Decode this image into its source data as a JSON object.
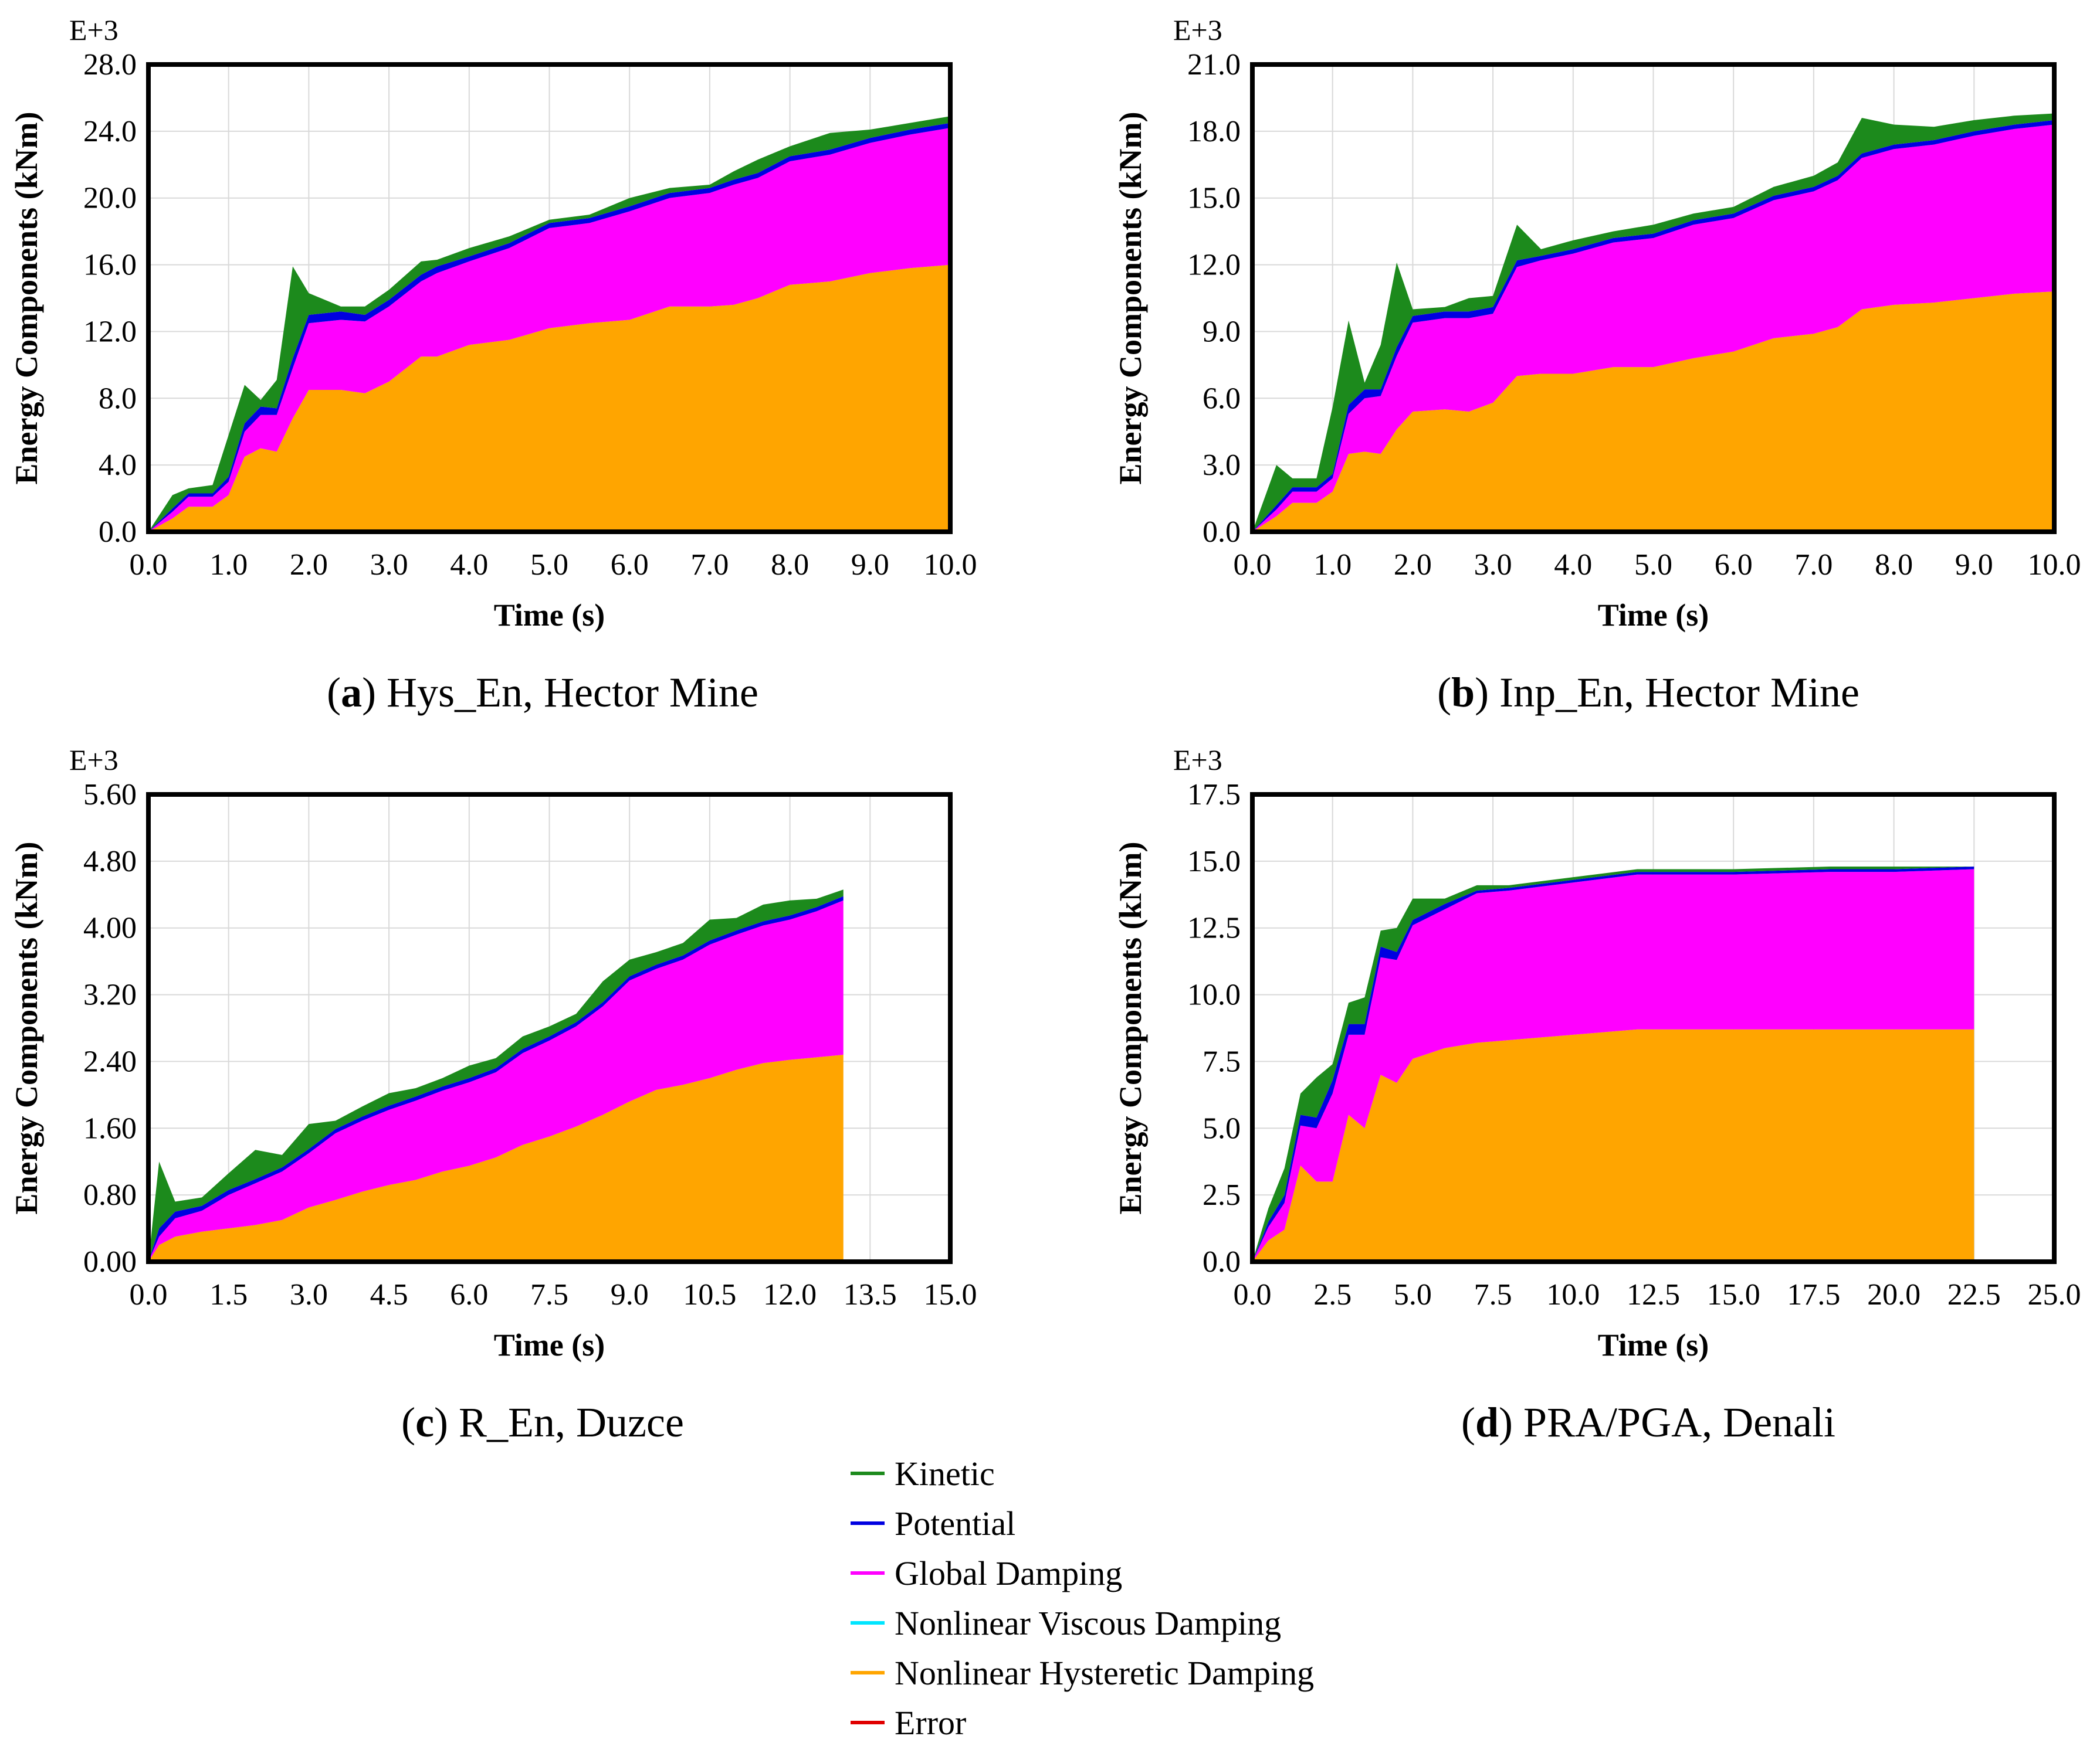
{
  "colors": {
    "kinetic": "#1c8a1c",
    "potential": "#0000e0",
    "global_damping": "#ff00ff",
    "nonlinear_viscous_damping": "#00e5ff",
    "nonlinear_hysteretic_damping": "#ffa500",
    "error": "#e00000",
    "grid": "#d9d9d9"
  },
  "legend": {
    "items": [
      {
        "key": "kinetic",
        "label": "Kinetic",
        "color": "#1c8a1c"
      },
      {
        "key": "potential",
        "label": "Potential",
        "color": "#0000e0"
      },
      {
        "key": "global_damping",
        "label": "Global Damping",
        "color": "#ff00ff"
      },
      {
        "key": "nonlinear_viscous_damping",
        "label": "Nonlinear Viscous Damping",
        "color": "#00e5ff"
      },
      {
        "key": "nonlinear_hysteretic_damping",
        "label": "Nonlinear Hysteretic Damping",
        "color": "#ffa500"
      },
      {
        "key": "error",
        "label": "Error",
        "color": "#e00000"
      }
    ]
  },
  "chart_data": [
    {
      "type": "area",
      "stacked": true,
      "caption_letter": "a",
      "caption_text": "Hys_En, Hector Mine",
      "xlabel": "Time (s)",
      "ylabel": "Energy Components (kNm)",
      "y_exponent": "E+3",
      "xlim": [
        0,
        10
      ],
      "ylim": [
        0,
        28
      ],
      "xticks": [
        "0.0",
        "1.0",
        "2.0",
        "3.0",
        "4.0",
        "5.0",
        "6.0",
        "7.0",
        "8.0",
        "9.0",
        "10.0"
      ],
      "yticks": [
        "0.0",
        "4.0",
        "8.0",
        "12.0",
        "16.0",
        "20.0",
        "24.0",
        "28.0"
      ],
      "x_end": 10,
      "x": [
        0,
        0.3,
        0.5,
        0.8,
        1.0,
        1.2,
        1.4,
        1.6,
        1.8,
        2.0,
        2.4,
        2.7,
        3.0,
        3.4,
        3.6,
        4.0,
        4.5,
        5.0,
        5.5,
        6.0,
        6.5,
        7.0,
        7.3,
        7.6,
        8.0,
        8.5,
        9.0,
        9.5,
        10.0
      ],
      "series": [
        {
          "name": "Nonlinear Hysteretic Damping",
          "values": [
            0,
            0.8,
            1.5,
            1.5,
            2.2,
            4.5,
            5.0,
            4.8,
            6.8,
            8.5,
            8.5,
            8.3,
            9.0,
            10.5,
            10.5,
            11.2,
            11.5,
            12.2,
            12.5,
            12.7,
            13.5,
            13.5,
            13.6,
            14.0,
            14.8,
            15.0,
            15.5,
            15.8,
            16.0
          ]
        },
        {
          "name": "Global Damping",
          "values": [
            0,
            0.4,
            0.6,
            0.6,
            0.8,
            1.5,
            2.0,
            2.2,
            3.0,
            4.0,
            4.2,
            4.3,
            4.5,
            4.5,
            5.0,
            5.0,
            5.5,
            6.0,
            6.0,
            6.5,
            6.5,
            6.8,
            7.2,
            7.2,
            7.4,
            7.6,
            7.8,
            8.0,
            8.2
          ]
        },
        {
          "name": "Potential",
          "values": [
            0,
            0.2,
            0.2,
            0.2,
            0.3,
            0.5,
            0.5,
            0.4,
            0.6,
            0.5,
            0.5,
            0.4,
            0.4,
            0.4,
            0.4,
            0.3,
            0.3,
            0.3,
            0.3,
            0.3,
            0.3,
            0.3,
            0.3,
            0.3,
            0.3,
            0.3,
            0.3,
            0.3,
            0.3
          ]
        },
        {
          "name": "Kinetic",
          "values": [
            0,
            0.8,
            0.3,
            0.5,
            2.5,
            2.3,
            0.4,
            1.7,
            5.5,
            1.3,
            0.3,
            0.5,
            0.6,
            0.8,
            0.4,
            0.5,
            0.4,
            0.2,
            0.2,
            0.5,
            0.3,
            0.2,
            0.5,
            0.8,
            0.6,
            1.0,
            0.5,
            0.4,
            0.4
          ]
        }
      ]
    },
    {
      "type": "area",
      "stacked": true,
      "caption_letter": "b",
      "caption_text": "Inp_En, Hector Mine",
      "xlabel": "Time (s)",
      "ylabel": "Energy Components (kNm)",
      "y_exponent": "E+3",
      "xlim": [
        0,
        10
      ],
      "ylim": [
        0,
        21
      ],
      "xticks": [
        "0.0",
        "1.0",
        "2.0",
        "3.0",
        "4.0",
        "5.0",
        "6.0",
        "7.0",
        "8.0",
        "9.0",
        "10.0"
      ],
      "yticks": [
        "0.0",
        "3.0",
        "6.0",
        "9.0",
        "12.0",
        "15.0",
        "18.0",
        "21.0"
      ],
      "x_end": 10,
      "x": [
        0,
        0.3,
        0.5,
        0.8,
        1.0,
        1.2,
        1.4,
        1.6,
        1.8,
        2.0,
        2.4,
        2.7,
        3.0,
        3.3,
        3.6,
        4.0,
        4.5,
        5.0,
        5.5,
        6.0,
        6.5,
        7.0,
        7.3,
        7.6,
        8.0,
        8.5,
        9.0,
        9.5,
        10.0
      ],
      "series": [
        {
          "name": "Nonlinear Hysteretic Damping",
          "values": [
            0,
            0.7,
            1.3,
            1.3,
            1.8,
            3.5,
            3.6,
            3.5,
            4.6,
            5.4,
            5.5,
            5.4,
            5.8,
            7.0,
            7.1,
            7.1,
            7.4,
            7.4,
            7.8,
            8.1,
            8.7,
            8.9,
            9.2,
            10.0,
            10.2,
            10.3,
            10.5,
            10.7,
            10.8
          ]
        },
        {
          "name": "Global Damping",
          "values": [
            0,
            0.3,
            0.5,
            0.5,
            0.6,
            1.8,
            2.4,
            2.6,
            3.3,
            4.0,
            4.1,
            4.2,
            4.0,
            4.9,
            5.1,
            5.4,
            5.6,
            5.8,
            6.0,
            6.0,
            6.2,
            6.4,
            6.6,
            6.8,
            7.0,
            7.1,
            7.3,
            7.4,
            7.5
          ]
        },
        {
          "name": "Potential",
          "values": [
            0,
            0.2,
            0.2,
            0.2,
            0.2,
            0.4,
            0.4,
            0.3,
            0.4,
            0.3,
            0.3,
            0.3,
            0.3,
            0.3,
            0.2,
            0.2,
            0.2,
            0.2,
            0.2,
            0.2,
            0.2,
            0.2,
            0.2,
            0.2,
            0.2,
            0.2,
            0.2,
            0.2,
            0.2
          ]
        },
        {
          "name": "Kinetic",
          "values": [
            0,
            1.8,
            0.4,
            0.4,
            3.0,
            3.8,
            0.3,
            2.0,
            3.8,
            0.3,
            0.2,
            0.6,
            0.5,
            1.6,
            0.3,
            0.4,
            0.3,
            0.4,
            0.3,
            0.3,
            0.4,
            0.5,
            0.6,
            1.6,
            0.9,
            0.6,
            0.5,
            0.4,
            0.3
          ]
        }
      ]
    },
    {
      "type": "area",
      "stacked": true,
      "caption_letter": "c",
      "caption_text": "R_En, Duzce",
      "xlabel": "Time (s)",
      "ylabel": "Energy Components (kNm)",
      "y_exponent": "E+3",
      "xlim": [
        0,
        15
      ],
      "ylim": [
        0,
        5.6
      ],
      "xticks": [
        "0.0",
        "1.5",
        "3.0",
        "4.5",
        "6.0",
        "7.5",
        "9.0",
        "10.5",
        "12.0",
        "13.5",
        "15.0"
      ],
      "yticks": [
        "0.00",
        "0.80",
        "1.60",
        "2.40",
        "3.20",
        "4.00",
        "4.80",
        "5.60"
      ],
      "x_end": 13.0,
      "x": [
        0,
        0.2,
        0.5,
        1.0,
        1.5,
        2.0,
        2.5,
        3.0,
        3.5,
        4.0,
        4.5,
        5.0,
        5.5,
        6.0,
        6.5,
        7.0,
        7.5,
        8.0,
        8.5,
        9.0,
        9.5,
        10.0,
        10.5,
        11.0,
        11.5,
        12.0,
        12.5,
        13.0
      ],
      "series": [
        {
          "name": "Nonlinear Hysteretic Damping",
          "values": [
            0,
            0.2,
            0.3,
            0.36,
            0.4,
            0.44,
            0.5,
            0.65,
            0.74,
            0.84,
            0.92,
            0.98,
            1.08,
            1.15,
            1.25,
            1.4,
            1.5,
            1.62,
            1.76,
            1.92,
            2.06,
            2.12,
            2.2,
            2.3,
            2.38,
            2.42,
            2.45,
            2.48
          ]
        },
        {
          "name": "Global Damping",
          "values": [
            0,
            0.1,
            0.22,
            0.25,
            0.4,
            0.5,
            0.58,
            0.65,
            0.8,
            0.85,
            0.9,
            0.95,
            0.97,
            1.0,
            1.02,
            1.1,
            1.15,
            1.2,
            1.3,
            1.45,
            1.45,
            1.5,
            1.6,
            1.62,
            1.65,
            1.68,
            1.75,
            1.85
          ]
        },
        {
          "name": "Potential",
          "values": [
            0,
            0.1,
            0.08,
            0.06,
            0.06,
            0.05,
            0.05,
            0.05,
            0.05,
            0.05,
            0.05,
            0.05,
            0.05,
            0.05,
            0.05,
            0.05,
            0.05,
            0.05,
            0.05,
            0.05,
            0.05,
            0.05,
            0.05,
            0.05,
            0.05,
            0.05,
            0.05,
            0.05
          ]
        },
        {
          "name": "Kinetic",
          "values": [
            0,
            0.8,
            0.12,
            0.1,
            0.2,
            0.35,
            0.15,
            0.3,
            0.1,
            0.12,
            0.15,
            0.1,
            0.1,
            0.15,
            0.12,
            0.15,
            0.12,
            0.1,
            0.25,
            0.2,
            0.15,
            0.15,
            0.25,
            0.15,
            0.2,
            0.18,
            0.1,
            0.08
          ]
        }
      ]
    },
    {
      "type": "area",
      "stacked": true,
      "caption_letter": "d",
      "caption_text": "PRA/PGA, Denali",
      "xlabel": "Time (s)",
      "ylabel": "Energy Components (kNm)",
      "y_exponent": "E+3",
      "xlim": [
        0,
        25
      ],
      "ylim": [
        0,
        17.5
      ],
      "xticks": [
        "0.0",
        "2.5",
        "5.0",
        "7.5",
        "10.0",
        "12.5",
        "15.0",
        "17.5",
        "20.0",
        "22.5",
        "25.0"
      ],
      "yticks": [
        "0.0",
        "2.5",
        "5.0",
        "7.5",
        "10.0",
        "12.5",
        "15.0",
        "17.5"
      ],
      "x_end": 22.5,
      "x": [
        0,
        0.5,
        1.0,
        1.5,
        2.0,
        2.5,
        3.0,
        3.5,
        4.0,
        4.5,
        5.0,
        6.0,
        7.0,
        8.0,
        10.0,
        12.0,
        15.0,
        18.0,
        20.0,
        22.5
      ],
      "series": [
        {
          "name": "Nonlinear Hysteretic Damping",
          "values": [
            0,
            0.8,
            1.2,
            3.6,
            3.0,
            3.0,
            5.5,
            5.0,
            7.0,
            6.7,
            7.6,
            8.0,
            8.2,
            8.3,
            8.5,
            8.7,
            8.7,
            8.7,
            8.7,
            8.7
          ]
        },
        {
          "name": "Global Damping",
          "values": [
            0,
            0.5,
            1.0,
            1.5,
            2.0,
            3.3,
            3.0,
            3.5,
            4.4,
            4.6,
            5.0,
            5.2,
            5.6,
            5.6,
            5.7,
            5.8,
            5.8,
            5.9,
            5.9,
            6.0
          ]
        },
        {
          "name": "Potential",
          "values": [
            0,
            0.2,
            0.3,
            0.4,
            0.4,
            0.5,
            0.4,
            0.4,
            0.4,
            0.3,
            0.2,
            0.2,
            0.1,
            0.1,
            0.1,
            0.1,
            0.1,
            0.1,
            0.1,
            0.1
          ]
        },
        {
          "name": "Kinetic",
          "values": [
            0,
            0.5,
            1.0,
            0.8,
            1.5,
            0.6,
            0.8,
            1.0,
            0.6,
            0.9,
            0.8,
            0.2,
            0.2,
            0.1,
            0.1,
            0.1,
            0.1,
            0.1,
            0.1,
            0.0
          ]
        }
      ]
    }
  ]
}
